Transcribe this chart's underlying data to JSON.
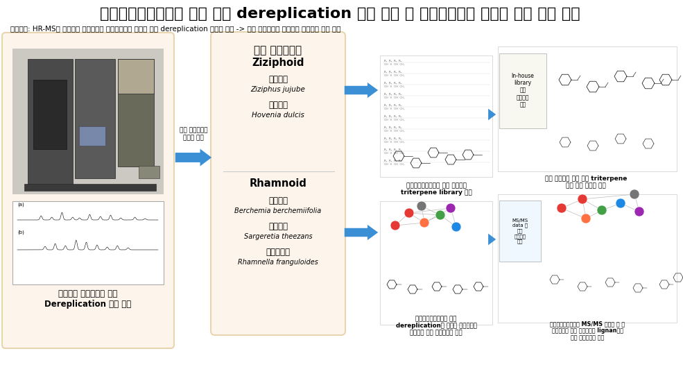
{
  "title": "고해상도질량분석기 기반 첨단 dereplication 기법 확립 및 유망자원식물 탐색을 위한 적용 연구",
  "subtitle": "연구목표: HR-MS를 활용하여 자생식물의 이차대사체를 밝히는 첨단 dereplication 기법의 확립 -> 자생 갈매나무과 식물들을 대상으로 연구 진행",
  "bg_color": "#ffffff",
  "panel_bg": "#fdf5ec",
  "panel_border": "#e8d5b0",
  "left_box_label": "고해상도 질량분석기 기반\nDereplication 기법 확립",
  "arrow_label": "자생 갈매나무과\n식물에 적용",
  "center_title": "자생 갈매나무과",
  "group1_title": "Ziziphoid",
  "group2_title": "Rhamnoid",
  "result1_label": "고해상도질량분석기 기반 대추나무\ntriterpene library 구족",
  "result2_label": "고해상도질량분석기 기반\ndereplication을 활용한 망개나무의\n색소성분 득이 이차대사체 확보",
  "right_top_label1": "In-house\nlibrary\n활용\n헛개나무\n연구",
  "right_top_label2": "기존 보고되지 않은 신규 triterpene\n계열 이차 대사체 확보",
  "right_bottom_label": "고해상도질량분석기 MS/MS 데이터 및 분\n자네트워크 활용 상동나무의 lignan계열\n득이 이차대사체 확보",
  "right_bottom_ms": "MS/MS\ndata 및\n분자\n네트워크\n적용",
  "arrow_color": "#3b8fd4"
}
